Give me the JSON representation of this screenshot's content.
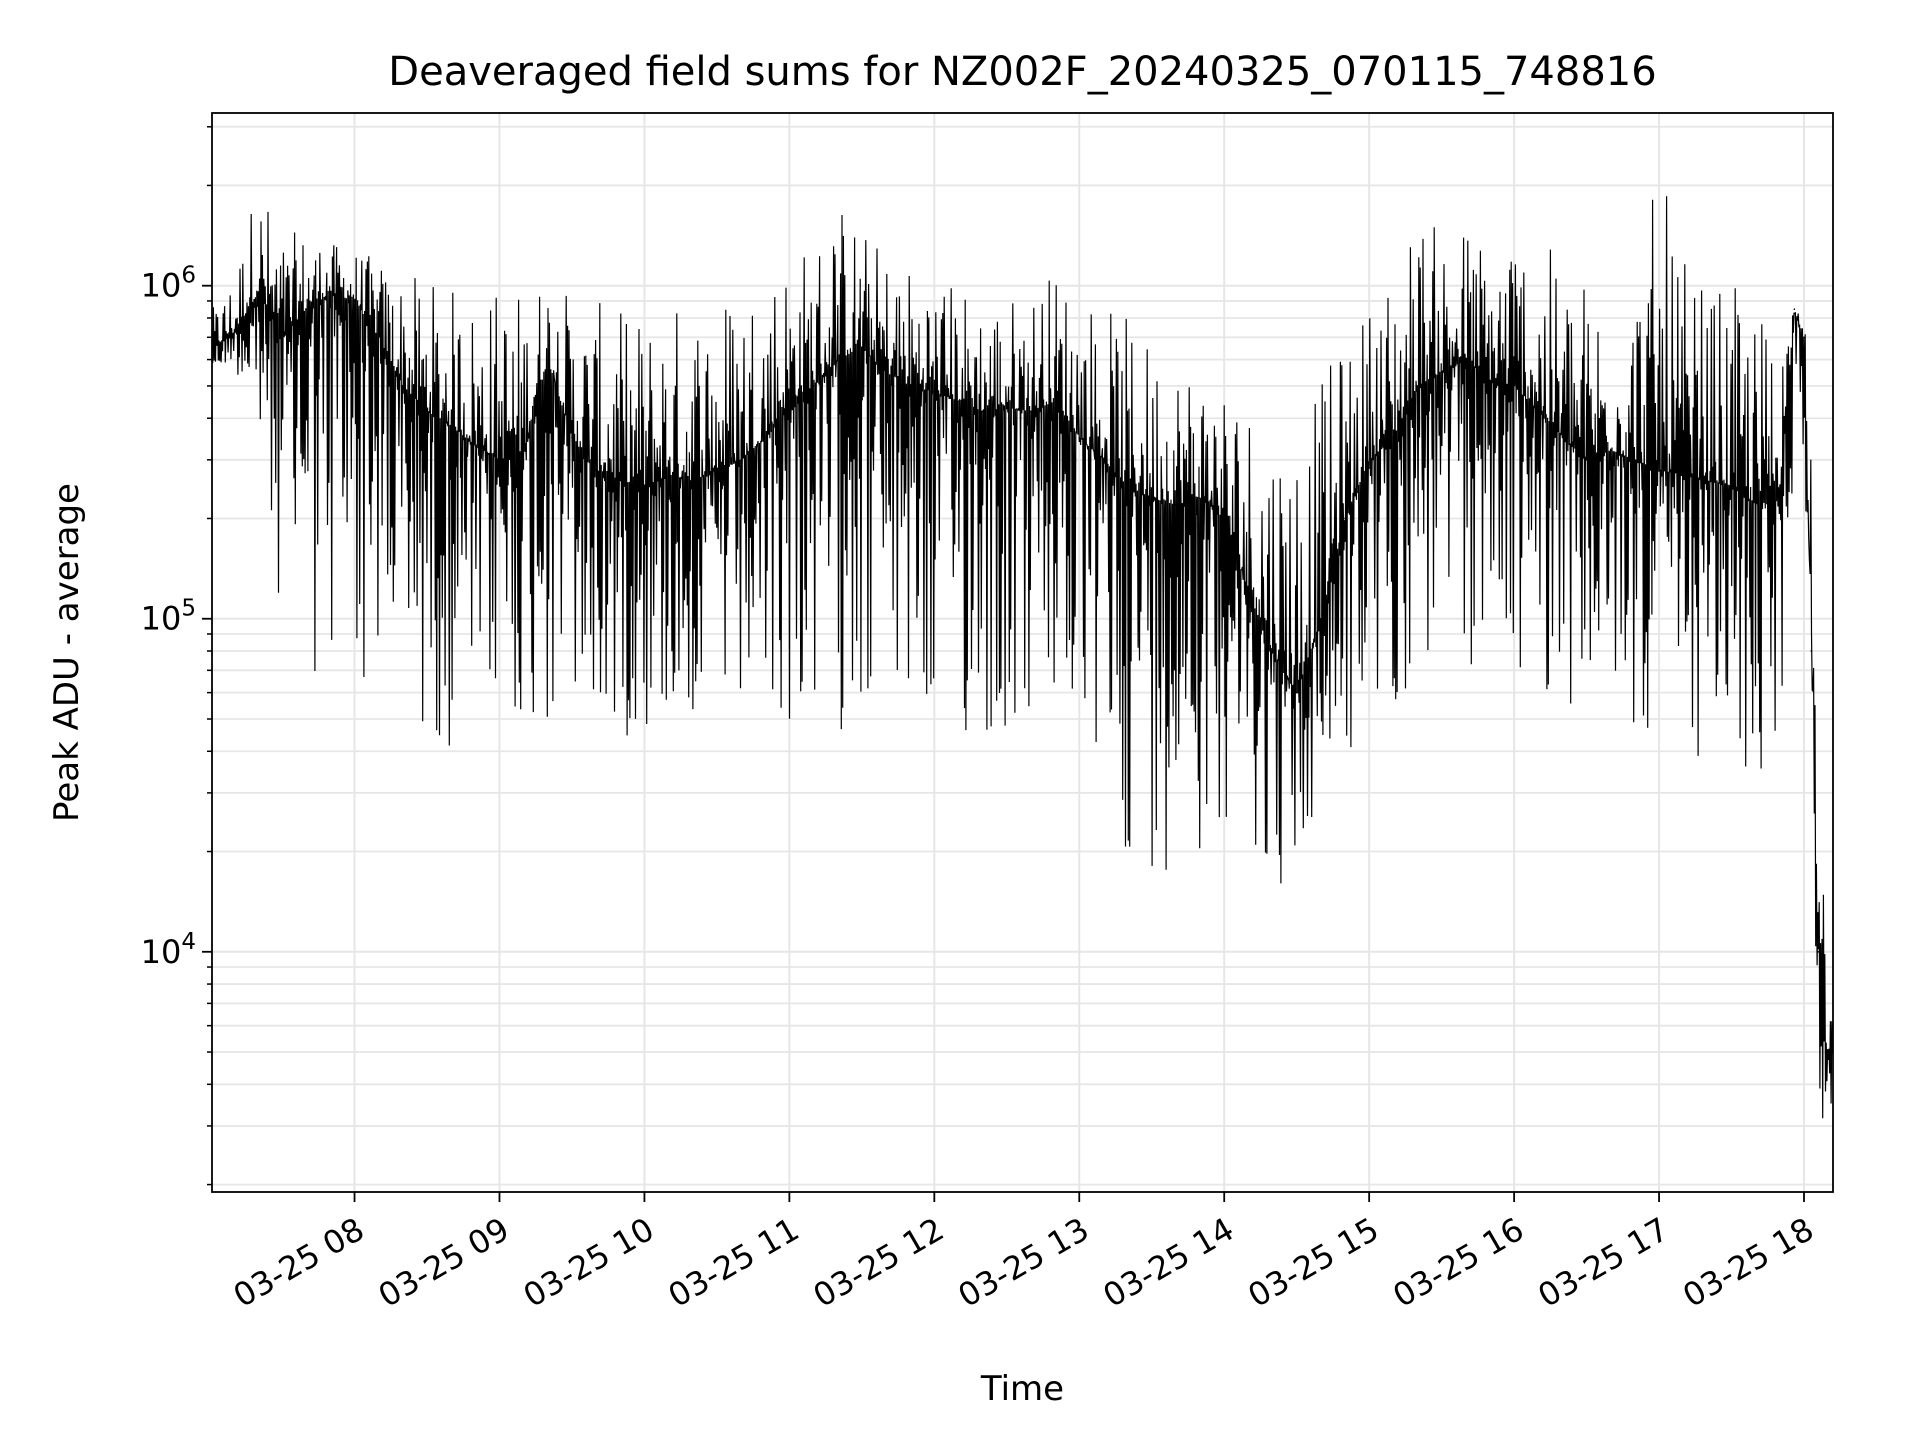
{
  "chart_data": {
    "type": "line",
    "title": "Deaveraged field sums for NZ002F_20240325_070115_748816",
    "xlabel": "Time",
    "ylabel": "Peak ADU - average",
    "x_scale": "time",
    "y_scale": "log",
    "xlim": [
      "2024-03-25 07:01",
      "2024-03-25 18:12"
    ],
    "ylim": [
      1900,
      3300000
    ],
    "grid": true,
    "line_color": "#000000",
    "x_ticks": [
      {
        "value": "2024-03-25 08:00",
        "label": "03-25 08"
      },
      {
        "value": "2024-03-25 09:00",
        "label": "03-25 09"
      },
      {
        "value": "2024-03-25 10:00",
        "label": "03-25 10"
      },
      {
        "value": "2024-03-25 11:00",
        "label": "03-25 11"
      },
      {
        "value": "2024-03-25 12:00",
        "label": "03-25 12"
      },
      {
        "value": "2024-03-25 13:00",
        "label": "03-25 13"
      },
      {
        "value": "2024-03-25 14:00",
        "label": "03-25 14"
      },
      {
        "value": "2024-03-25 15:00",
        "label": "03-25 15"
      },
      {
        "value": "2024-03-25 16:00",
        "label": "03-25 16"
      },
      {
        "value": "2024-03-25 17:00",
        "label": "03-25 17"
      },
      {
        "value": "2024-03-25 18:00",
        "label": "03-25 18"
      }
    ],
    "y_ticks": [
      {
        "value": 10000,
        "base": "10",
        "exp": "4"
      },
      {
        "value": 100000,
        "base": "10",
        "exp": "5"
      },
      {
        "value": 1000000,
        "base": "10",
        "exp": "6"
      }
    ],
    "series": [
      {
        "x": [
          "2024-03-25 07:01",
          "2024-03-25 07:10",
          "2024-03-25 07:20",
          "2024-03-25 07:30",
          "2024-03-25 07:40",
          "2024-03-25 07:50",
          "2024-03-25 08:00",
          "2024-03-25 08:10",
          "2024-03-25 08:20",
          "2024-03-25 08:30",
          "2024-03-25 08:40",
          "2024-03-25 08:50",
          "2024-03-25 09:00",
          "2024-03-25 09:10",
          "2024-03-25 09:20",
          "2024-03-25 09:30",
          "2024-03-25 09:40",
          "2024-03-25 09:50",
          "2024-03-25 10:00",
          "2024-03-25 10:10",
          "2024-03-25 10:20",
          "2024-03-25 10:30",
          "2024-03-25 10:40",
          "2024-03-25 10:50",
          "2024-03-25 11:00",
          "2024-03-25 11:10",
          "2024-03-25 11:20",
          "2024-03-25 11:30",
          "2024-03-25 11:40",
          "2024-03-25 11:50",
          "2024-03-25 12:00",
          "2024-03-25 12:10",
          "2024-03-25 12:20",
          "2024-03-25 12:30",
          "2024-03-25 12:40",
          "2024-03-25 12:50",
          "2024-03-25 13:00",
          "2024-03-25 13:10",
          "2024-03-25 13:20",
          "2024-03-25 13:30",
          "2024-03-25 13:40",
          "2024-03-25 13:50",
          "2024-03-25 14:00",
          "2024-03-25 14:10",
          "2024-03-25 14:20",
          "2024-03-25 14:30",
          "2024-03-25 14:40",
          "2024-03-25 14:50",
          "2024-03-25 15:00",
          "2024-03-25 15:10",
          "2024-03-25 15:20",
          "2024-03-25 15:30",
          "2024-03-25 15:40",
          "2024-03-25 15:50",
          "2024-03-25 16:00",
          "2024-03-25 16:10",
          "2024-03-25 16:20",
          "2024-03-25 16:30",
          "2024-03-25 16:40",
          "2024-03-25 16:50",
          "2024-03-25 17:00",
          "2024-03-25 17:10",
          "2024-03-25 17:20",
          "2024-03-25 17:30",
          "2024-03-25 17:40",
          "2024-03-25 17:50",
          "2024-03-25 17:56",
          "2024-03-25 18:00",
          "2024-03-25 18:03",
          "2024-03-25 18:06",
          "2024-03-25 18:09",
          "2024-03-25 18:12"
        ],
        "y": [
          650000,
          720000,
          950000,
          700000,
          850000,
          950000,
          900000,
          700000,
          500000,
          420000,
          380000,
          330000,
          300000,
          320000,
          600000,
          350000,
          280000,
          260000,
          250000,
          270000,
          260000,
          280000,
          300000,
          350000,
          450000,
          500000,
          600000,
          650000,
          550000,
          500000,
          480000,
          450000,
          420000,
          430000,
          420000,
          450000,
          350000,
          300000,
          250000,
          230000,
          220000,
          230000,
          200000,
          120000,
          80000,
          60000,
          100000,
          200000,
          300000,
          350000,
          500000,
          550000,
          600000,
          520000,
          500000,
          420000,
          350000,
          300000,
          320000,
          300000,
          280000,
          270000,
          260000,
          250000,
          220000,
          250000,
          850000,
          700000,
          80000,
          10000,
          4500,
          6000
        ],
        "y_low": [
          500000,
          600000,
          250000,
          100000,
          60000,
          55000,
          60000,
          55000,
          45000,
          42000,
          40000,
          45000,
          50000,
          45000,
          40000,
          45000,
          38000,
          42000,
          45000,
          45000,
          48000,
          45000,
          40000,
          40000,
          45000,
          42000,
          45000,
          50000,
          45000,
          45000,
          40000,
          40000,
          38000,
          40000,
          42000,
          45000,
          38000,
          28000,
          18000,
          17000,
          18000,
          20000,
          25000,
          22000,
          15000,
          15000,
          28000,
          35000,
          40000,
          50000,
          60000,
          70000,
          65000,
          70000,
          65000,
          60000,
          55000,
          50000,
          48000,
          45000,
          40000,
          38000,
          35000,
          30000,
          28000,
          32000,
          400000,
          300000,
          20000,
          3000,
          2800,
          3500
        ],
        "y_high": [
          850000,
          1100000,
          2200000,
          1400000,
          1500000,
          1350000,
          1300000,
          1200000,
          1100000,
          1050000,
          1000000,
          950000,
          1050000,
          1000000,
          1100000,
          950000,
          900000,
          850000,
          850000,
          900000,
          950000,
          1000000,
          1100000,
          1200000,
          1300000,
          1400000,
          1900000,
          1500000,
          1300000,
          1200000,
          1100000,
          1050000,
          950000,
          950000,
          1000000,
          1150000,
          1000000,
          900000,
          800000,
          700000,
          650000,
          600000,
          550000,
          500000,
          450000,
          480000,
          520000,
          700000,
          900000,
          1200000,
          1700000,
          1500000,
          1600000,
          1400000,
          1700000,
          1400000,
          1200000,
          1100000,
          1000000,
          1100000,
          2300000,
          1200000,
          1000000,
          1000000,
          900000,
          800000,
          900000,
          900000,
          300000,
          30000,
          12000,
          8000
        ]
      }
    ]
  }
}
